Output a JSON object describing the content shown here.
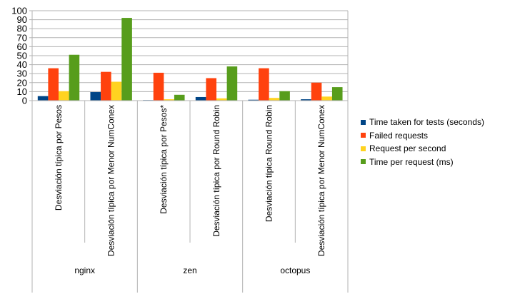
{
  "chart_data": {
    "type": "bar",
    "ylim": [
      0,
      100
    ],
    "yticks": [
      0,
      10,
      20,
      30,
      40,
      50,
      60,
      70,
      80,
      90,
      100
    ],
    "grid": true,
    "legend_position": "right",
    "groups": [
      {
        "name": "nginx",
        "categories": [
          "Desviación típica por Pesos",
          "Desviación típica por Menor NumConex"
        ]
      },
      {
        "name": "zen",
        "categories": [
          "Desviación típica por Pesos*",
          "Desviación típica por Round Robin"
        ]
      },
      {
        "name": "octopus",
        "categories": [
          "Desviación típica Round Robin",
          "Desviación típica por Menor NumConex"
        ]
      }
    ],
    "categories": [
      "Desviación típica por Pesos",
      "Desviación típica por Menor NumConex",
      "Desviación típica por Pesos*",
      "Desviación típica por Round Robin",
      "Desviación típica Round Robin",
      "Desviación típica por Menor NumConex"
    ],
    "series": [
      {
        "name": "Time taken for tests (seconds)",
        "color": "#004586",
        "values": [
          5,
          9.5,
          0.6,
          4,
          1,
          1.5
        ]
      },
      {
        "name": "Failed requests",
        "color": "#ff420e",
        "values": [
          36,
          32,
          31,
          25,
          36,
          20
        ]
      },
      {
        "name": "Request per second",
        "color": "#ffd320",
        "values": [
          10.5,
          21,
          1.5,
          2.5,
          3,
          4.5
        ]
      },
      {
        "name": "Time per request (ms)",
        "color": "#579d1c",
        "values": [
          51,
          92,
          6.5,
          38,
          10.5,
          15
        ]
      }
    ]
  }
}
